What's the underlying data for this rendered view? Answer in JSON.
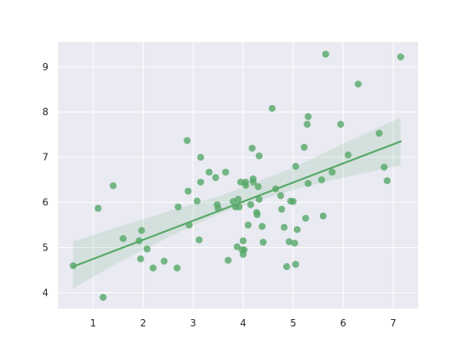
{
  "chart_data": {
    "type": "scatter",
    "title": "",
    "xlabel": "",
    "ylabel": "",
    "xlim": [
      0.3,
      7.5
    ],
    "ylim": [
      3.65,
      9.55
    ],
    "xticks": [
      1,
      2,
      3,
      4,
      5,
      6,
      7
    ],
    "yticks": [
      4,
      5,
      6,
      7,
      8,
      9
    ],
    "grid": true,
    "colors": {
      "background": "#eaeaf2",
      "grid": "#ffffff",
      "point": "#55a868",
      "line": "#55a868",
      "band": "#55a868"
    },
    "series": [
      {
        "points": [
          [
            0.6,
            4.6
          ],
          [
            1.1,
            5.87
          ],
          [
            1.2,
            3.9
          ],
          [
            1.4,
            6.37
          ],
          [
            1.6,
            5.2
          ],
          [
            1.92,
            5.15
          ],
          [
            1.95,
            4.75
          ],
          [
            1.97,
            5.38
          ],
          [
            2.08,
            4.97
          ],
          [
            2.2,
            4.55
          ],
          [
            2.42,
            4.7
          ],
          [
            2.68,
            4.55
          ],
          [
            2.7,
            5.9
          ],
          [
            2.88,
            7.37
          ],
          [
            2.9,
            6.25
          ],
          [
            2.92,
            5.5
          ],
          [
            3.08,
            6.03
          ],
          [
            3.12,
            5.17
          ],
          [
            3.15,
            7.0
          ],
          [
            3.15,
            6.45
          ],
          [
            3.32,
            6.67
          ],
          [
            3.45,
            6.55
          ],
          [
            3.48,
            5.95
          ],
          [
            3.5,
            5.87
          ],
          [
            3.65,
            6.67
          ],
          [
            3.7,
            4.72
          ],
          [
            3.8,
            6.02
          ],
          [
            3.85,
            5.9
          ],
          [
            3.88,
            5.02
          ],
          [
            3.9,
            6.07
          ],
          [
            3.92,
            5.9
          ],
          [
            3.95,
            6.45
          ],
          [
            3.98,
            4.95
          ],
          [
            4.0,
            5.15
          ],
          [
            4.0,
            4.85
          ],
          [
            4.02,
            4.95
          ],
          [
            4.05,
            6.45
          ],
          [
            4.05,
            6.38
          ],
          [
            4.1,
            5.5
          ],
          [
            4.15,
            5.95
          ],
          [
            4.18,
            7.2
          ],
          [
            4.2,
            6.52
          ],
          [
            4.2,
            6.45
          ],
          [
            4.27,
            5.78
          ],
          [
            4.28,
            5.73
          ],
          [
            4.3,
            6.35
          ],
          [
            4.32,
            6.07
          ],
          [
            4.32,
            7.03
          ],
          [
            4.38,
            5.47
          ],
          [
            4.4,
            5.12
          ],
          [
            4.58,
            8.08
          ],
          [
            4.65,
            6.3
          ],
          [
            4.75,
            6.15
          ],
          [
            4.77,
            5.85
          ],
          [
            4.82,
            5.45
          ],
          [
            4.87,
            4.58
          ],
          [
            4.92,
            5.13
          ],
          [
            4.95,
            6.03
          ],
          [
            5.0,
            6.02
          ],
          [
            5.03,
            5.1
          ],
          [
            5.05,
            6.8
          ],
          [
            5.05,
            4.63
          ],
          [
            5.08,
            5.4
          ],
          [
            5.22,
            7.22
          ],
          [
            5.25,
            5.65
          ],
          [
            5.28,
            7.73
          ],
          [
            5.3,
            7.9
          ],
          [
            5.3,
            6.42
          ],
          [
            5.57,
            6.5
          ],
          [
            5.6,
            5.7
          ],
          [
            5.65,
            9.28
          ],
          [
            5.78,
            6.67
          ],
          [
            5.95,
            7.73
          ],
          [
            6.1,
            7.05
          ],
          [
            6.3,
            8.62
          ],
          [
            6.72,
            7.53
          ],
          [
            6.82,
            6.78
          ],
          [
            6.88,
            6.48
          ],
          [
            7.15,
            9.22
          ]
        ]
      }
    ],
    "regression": {
      "x": [
        0.6,
        7.15
      ],
      "y": [
        4.58,
        7.35
      ],
      "ci": {
        "x": [
          0.6,
          1.5,
          2.5,
          3.5,
          4.2,
          5.0,
          6.0,
          7.15
        ],
        "lower": [
          4.1,
          4.67,
          5.23,
          5.74,
          6.0,
          6.28,
          6.55,
          6.82
        ],
        "upper": [
          5.13,
          5.46,
          5.8,
          6.13,
          6.42,
          6.77,
          7.3,
          7.88
        ]
      }
    }
  }
}
